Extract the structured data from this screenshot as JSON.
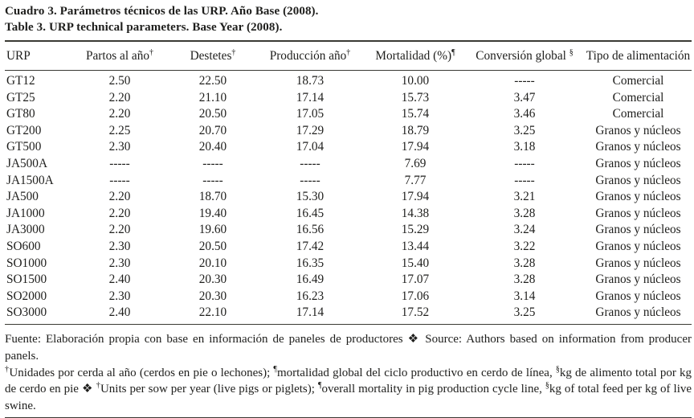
{
  "document": {
    "title_es": "Cuadro 3. Parámetros técnicos de las URP. Año Base (2008).",
    "title_en": "Table 3. URP technical parameters. Base Year (2008)."
  },
  "table": {
    "columns": [
      {
        "label": "URP",
        "sup": ""
      },
      {
        "label": "Partos al año",
        "sup": "†"
      },
      {
        "label": "Destetes",
        "sup": "†"
      },
      {
        "label": "Producción año",
        "sup": "†"
      },
      {
        "label": "Mortalidad (%)",
        "sup": "¶"
      },
      {
        "label": "Conversión global ",
        "sup": "§"
      },
      {
        "label": "Tipo de alimentación",
        "sup": ""
      }
    ],
    "rows": [
      [
        "GT12",
        "2.50",
        "22.50",
        "18.73",
        "10.00",
        "-----",
        "Comercial"
      ],
      [
        "GT25",
        "2.20",
        "21.10",
        "17.14",
        "15.73",
        "3.47",
        "Comercial"
      ],
      [
        "GT80",
        "2.20",
        "20.50",
        "17.05",
        "15.74",
        "3.46",
        "Comercial"
      ],
      [
        "GT200",
        "2.25",
        "20.70",
        "17.29",
        "18.79",
        "3.25",
        "Granos y núcleos"
      ],
      [
        "GT500",
        "2.30",
        "20.40",
        "17.04",
        "17.94",
        "3.18",
        "Granos y núcleos"
      ],
      [
        "JA500A",
        "-----",
        "-----",
        "-----",
        "7.69",
        "-----",
        "Granos y núcleos"
      ],
      [
        "JA1500A",
        "-----",
        "-----",
        "-----",
        "7.77",
        "-----",
        "Granos y núcleos"
      ],
      [
        "JA500",
        "2.20",
        "18.70",
        "15.30",
        "17.94",
        "3.21",
        "Granos y núcleos"
      ],
      [
        "JA1000",
        "2.20",
        "19.40",
        "16.45",
        "14.38",
        "3.28",
        "Granos y núcleos"
      ],
      [
        "JA3000",
        "2.20",
        "19.60",
        "16.56",
        "15.29",
        "3.24",
        "Granos y núcleos"
      ],
      [
        "SO600",
        "2.30",
        "20.50",
        "17.42",
        "13.44",
        "3.22",
        "Granos y núcleos"
      ],
      [
        "SO1000",
        "2.30",
        "20.10",
        "16.35",
        "15.40",
        "3.28",
        "Granos y núcleos"
      ],
      [
        "SO1500",
        "2.40",
        "20.30",
        "16.49",
        "17.07",
        "3.28",
        "Granos y núcleos"
      ],
      [
        "SO2000",
        "2.30",
        "20.30",
        "16.23",
        "17.06",
        "3.14",
        "Granos y núcleos"
      ],
      [
        "SO3000",
        "2.40",
        "22.10",
        "17.14",
        "17.52",
        "3.25",
        "Granos y núcleos"
      ]
    ]
  },
  "footnotes": {
    "source": "Fuente: Elaboración propia con base en información de paneles de productores ❖ Source: Authors based on information from producer panels.",
    "definitions": [
      {
        "sup": "†",
        "text": "Unidades por cerda al año (cerdos en pie o lechones); "
      },
      {
        "sup": "¶",
        "text": "mortalidad global del ciclo productivo en cerdo de línea, "
      },
      {
        "sup": "§",
        "text": "kg de alimento total por kg de cerdo en pie ❖ "
      },
      {
        "sup": "†",
        "text": "Units per sow per year (live pigs or piglets); "
      },
      {
        "sup": "¶",
        "text": "overall mortality in pig production cycle line, "
      },
      {
        "sup": "§",
        "text": "kg of total feed per kg of live swine."
      }
    ]
  }
}
